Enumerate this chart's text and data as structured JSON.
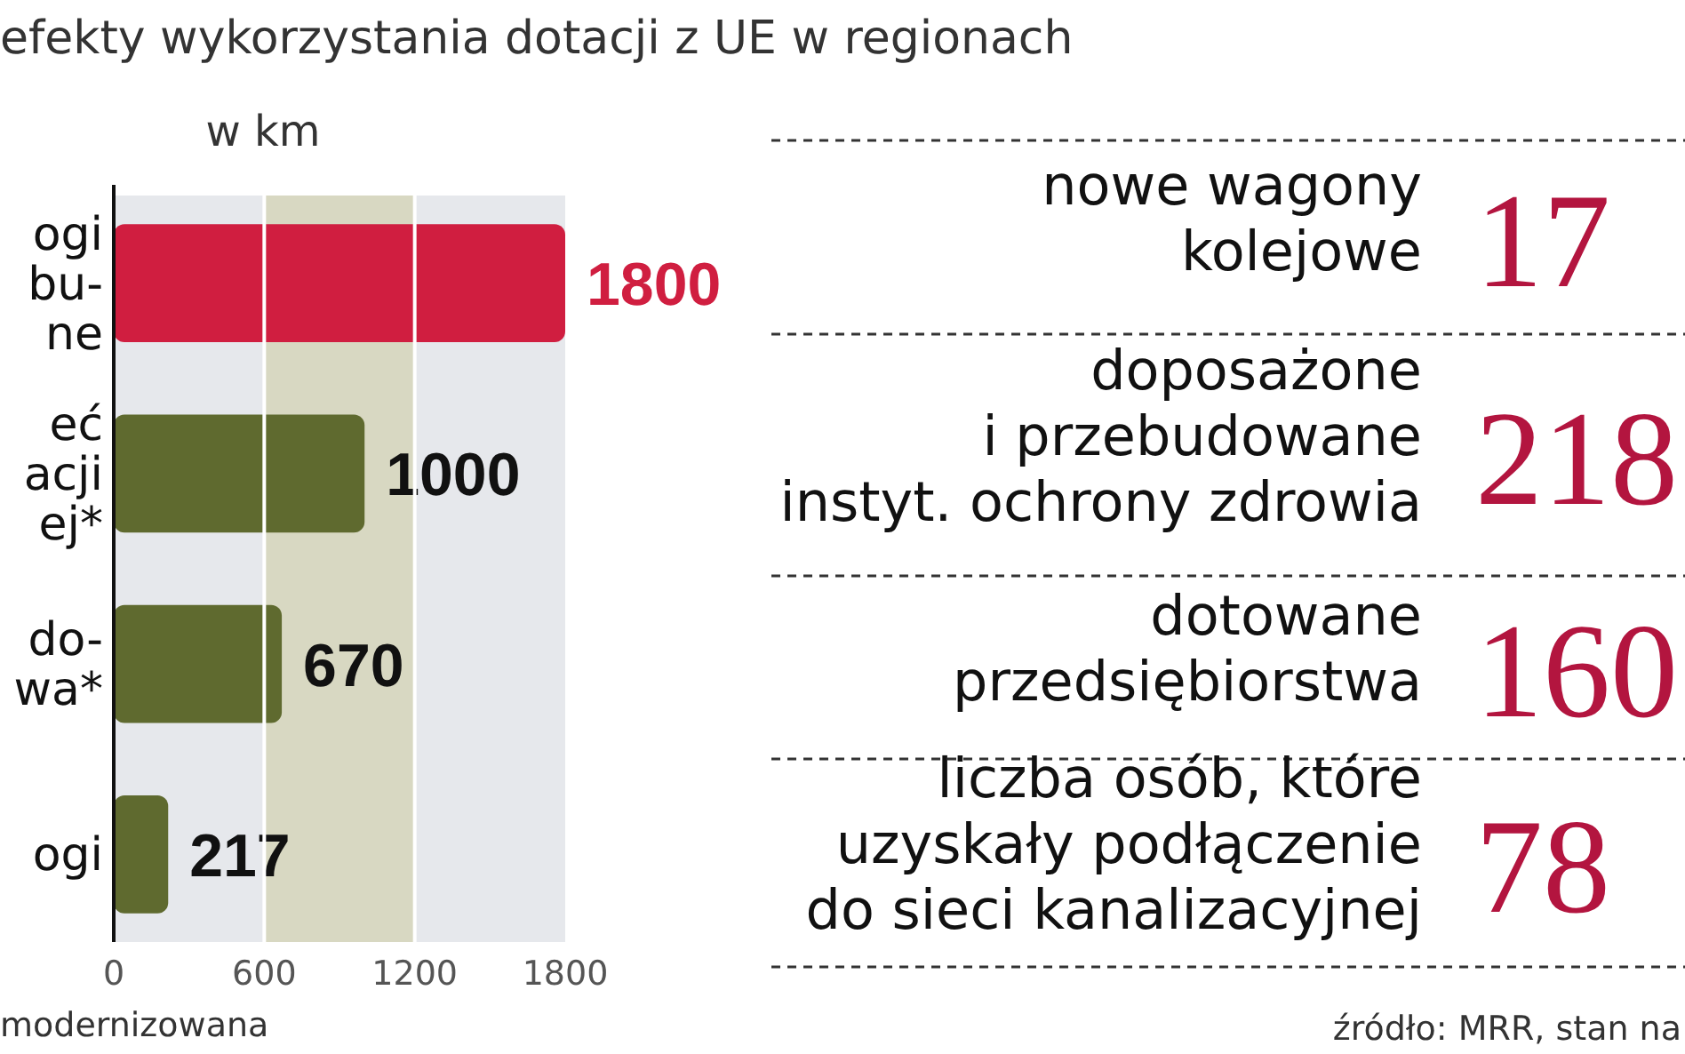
{
  "chart_data": [
    {
      "type": "bar",
      "orientation": "horizontal",
      "title": "efekty wykorzystania dotacji z UE w regionach",
      "subtitle": "w km",
      "categories": [
        "ogi\nbu-\nne",
        "eć\nacji\nej*",
        "do-\nwa*",
        "ogi"
      ],
      "values": [
        1800,
        1000,
        670,
        217
      ],
      "colors": [
        "#d01e40",
        "#5f6a2f",
        "#5f6a2f",
        "#5f6a2f"
      ],
      "xlim": [
        0,
        1800
      ],
      "xticks": [
        0,
        600,
        1200,
        1800
      ],
      "grid": "x",
      "data_labels": true,
      "bands": [
        {
          "axis": "x",
          "from": 600,
          "to": 1200,
          "color": "#d8d8c2"
        }
      ],
      "annotations": [
        "modernizowana"
      ]
    },
    {
      "type": "other",
      "categories": [
        "nowe wagony\nkolejowe",
        "doposażone\ni przebudowane\ninstyt. ochrony zdrowia",
        "dotowane\nprzedsiębiorstwa",
        "liczba osób, które\nuzyskały podłączenie\ndo sieci kanalizacyjnej"
      ],
      "annotations": [
        "17",
        "218",
        "160",
        "78",
        "źródło: MRR, stan na"
      ]
    }
  ]
}
